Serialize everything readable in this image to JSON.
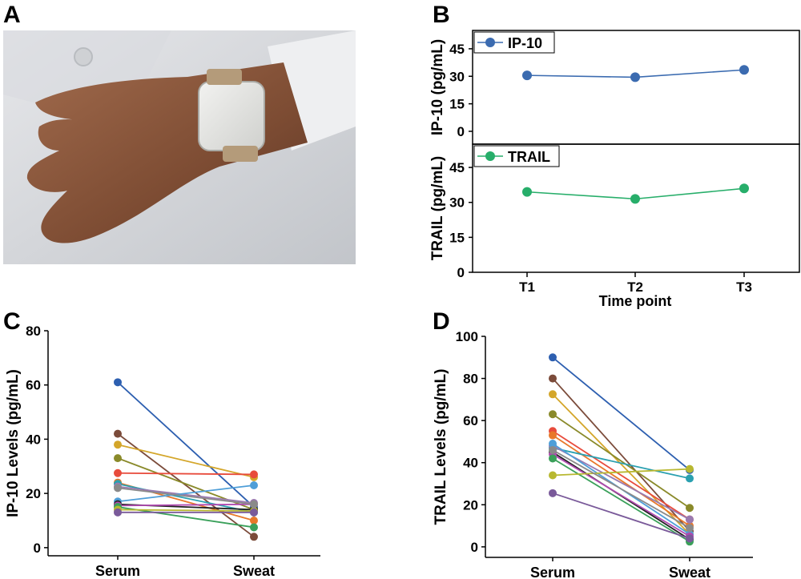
{
  "panels": {
    "a": "A",
    "b": "B",
    "c": "C",
    "d": "D"
  },
  "photo": {
    "caption": "wristband-sweat-sensor-photo"
  },
  "colors": {
    "ip10": "#3b6bb0",
    "trail": "#27ae6a",
    "subjects": [
      "#2d5fb0",
      "#7b4b3a",
      "#d4a62a",
      "#8a8a2a",
      "#e84b3c",
      "#e8782a",
      "#2aa0b0",
      "#9a7ab0",
      "#4e9ed8",
      "#222222",
      "#b04ab0",
      "#3aa05a",
      "#b8b830",
      "#7a5a9a",
      "#8a8a8a"
    ]
  },
  "chart_data": [
    {
      "type": "line",
      "panel": "B",
      "categories": [
        "T1",
        "T2",
        "T3"
      ],
      "xlabel": "Time point",
      "series": [
        {
          "name": "IP-10",
          "ylabel": "IP-10 (pg/mL)",
          "values": [
            30.5,
            29.5,
            33.5
          ],
          "ylim": [
            -7,
            55
          ],
          "yticks": [
            0,
            15,
            30,
            45
          ]
        },
        {
          "name": "TRAIL",
          "ylabel": "TRAIL (pg/mL)",
          "values": [
            34.5,
            31.5,
            36.0
          ],
          "ylim": [
            0,
            55
          ],
          "yticks": [
            0,
            15,
            30,
            45
          ]
        }
      ]
    },
    {
      "type": "line",
      "panel": "C",
      "categories": [
        "Serum",
        "Sweat"
      ],
      "ylabel": "IP-10 Levels (pg/mL)",
      "ylim": [
        -3,
        80
      ],
      "yticks": [
        0,
        20,
        40,
        60,
        80
      ],
      "pairs": [
        [
          61,
          15
        ],
        [
          42,
          4
        ],
        [
          38,
          26
        ],
        [
          33,
          14
        ],
        [
          27.5,
          27
        ],
        [
          24,
          10
        ],
        [
          23.5,
          13
        ],
        [
          22.5,
          16.5
        ],
        [
          17,
          23
        ],
        [
          16,
          14
        ],
        [
          15.5,
          16
        ],
        [
          15,
          7.5
        ],
        [
          14,
          13.5
        ],
        [
          13,
          13
        ],
        [
          22,
          16
        ]
      ]
    },
    {
      "type": "line",
      "panel": "D",
      "categories": [
        "Serum",
        "Sweat"
      ],
      "ylabel": "TRAIL Levels (pg/mL)",
      "ylim": [
        -5,
        100
      ],
      "yticks": [
        0,
        20,
        40,
        60,
        80,
        100
      ],
      "pairs": [
        [
          90,
          36.5
        ],
        [
          80,
          7.5
        ],
        [
          72.5,
          6
        ],
        [
          63,
          18.5
        ],
        [
          55,
          13
        ],
        [
          53,
          10
        ],
        [
          47,
          32.5
        ],
        [
          48,
          13
        ],
        [
          49,
          6
        ],
        [
          45,
          3.5
        ],
        [
          44,
          5
        ],
        [
          42,
          2.5
        ],
        [
          34,
          37
        ],
        [
          25.5,
          4
        ],
        [
          46,
          9
        ]
      ]
    }
  ]
}
